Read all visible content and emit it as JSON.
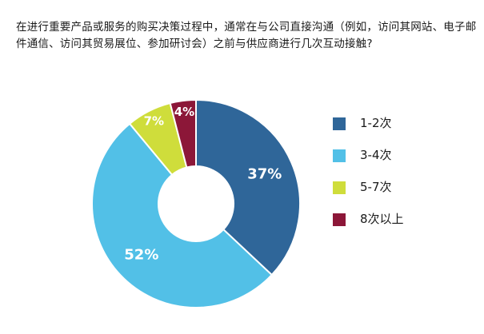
{
  "title": "在进行重要产品或服务的购买决策过程中，通常在与公司直接沟通（例如，访问其网站、电子邮件通信、访问其贸易展位、参加研讨会）之前与供应商进行几次互动接触?",
  "chart_data": {
    "type": "pie",
    "donut": true,
    "title": "在进行重要产品或服务的购买决策过程中，通常在与公司直接沟通（例如，访问其网站、电子邮件通信、访问其贸易展位、参加研讨会）之前与供应商进行几次互动接触?",
    "categories": [
      "1-2次",
      "3-4次",
      "5-7次",
      "8次以上"
    ],
    "values": [
      37,
      52,
      7,
      4
    ],
    "data_labels": [
      "37%",
      "52%",
      "7%",
      "4%"
    ],
    "colors": [
      "#2f6699",
      "#52c0e7",
      "#cfdd3b",
      "#8c1738"
    ],
    "legend_position": "right"
  }
}
